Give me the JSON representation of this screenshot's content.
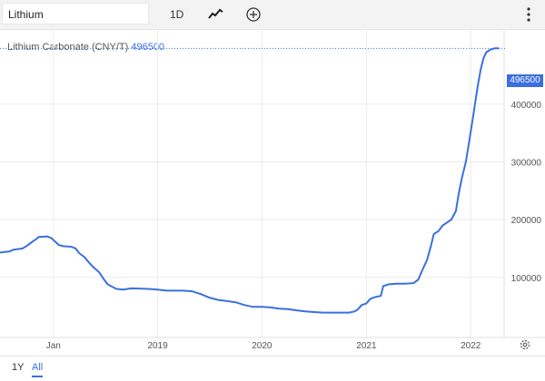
{
  "toolbar": {
    "search_value": "Lithium",
    "interval_label": "1D"
  },
  "ranges": [
    "1Y",
    "All"
  ],
  "active_range": "All",
  "colors": {
    "line": "#3b6fe0",
    "grid": "#ebebeb",
    "axis_text": "#555555"
  },
  "chart_data": {
    "type": "line",
    "title": "Lithium Carbonate (CNY/T)",
    "last_value": "496500",
    "x_ticks": [
      "Jan",
      "2019",
      "2020",
      "2021",
      "2022"
    ],
    "x_tick_dates": [
      "2018-01-01",
      "2019-01-01",
      "2020-01-01",
      "2021-01-01",
      "2022-01-01"
    ],
    "y_ticks": [
      100000,
      200000,
      300000,
      400000
    ],
    "y_tick_labels": [
      "100000",
      "200000",
      "300000",
      "400000"
    ],
    "x_range": [
      "2017-06-28",
      "2022-04-28"
    ],
    "y_range": [
      -4000,
      530000
    ],
    "grid": true,
    "series": [
      {
        "points": [
          [
            "2017-06-28",
            143000
          ],
          [
            "2017-08-01",
            145000
          ],
          [
            "2017-08-15",
            148000
          ],
          [
            "2017-09-15",
            150000
          ],
          [
            "2017-10-01",
            155000
          ],
          [
            "2017-10-20",
            162000
          ],
          [
            "2017-11-01",
            166000
          ],
          [
            "2017-11-10",
            170000
          ],
          [
            "2017-12-10",
            171000
          ],
          [
            "2017-12-25",
            168000
          ],
          [
            "2018-01-05",
            163000
          ],
          [
            "2018-01-20",
            156000
          ],
          [
            "2018-02-05",
            154000
          ],
          [
            "2018-03-05",
            153000
          ],
          [
            "2018-03-20",
            150000
          ],
          [
            "2018-04-01",
            142000
          ],
          [
            "2018-04-20",
            135000
          ],
          [
            "2018-05-05",
            126000
          ],
          [
            "2018-05-20",
            118000
          ],
          [
            "2018-06-10",
            109000
          ],
          [
            "2018-06-25",
            98000
          ],
          [
            "2018-07-10",
            88000
          ],
          [
            "2018-07-25",
            84000
          ],
          [
            "2018-08-10",
            80000
          ],
          [
            "2018-09-01",
            79000
          ],
          [
            "2018-10-01",
            81000
          ],
          [
            "2018-12-01",
            80000
          ],
          [
            "2019-01-01",
            79000
          ],
          [
            "2019-02-01",
            77000
          ],
          [
            "2019-04-01",
            77000
          ],
          [
            "2019-05-01",
            76000
          ],
          [
            "2019-06-01",
            71000
          ],
          [
            "2019-07-01",
            65000
          ],
          [
            "2019-08-01",
            61000
          ],
          [
            "2019-09-01",
            59000
          ],
          [
            "2019-10-01",
            57000
          ],
          [
            "2019-11-01",
            52000
          ],
          [
            "2019-12-01",
            49000
          ],
          [
            "2020-01-01",
            49000
          ],
          [
            "2020-02-01",
            48000
          ],
          [
            "2020-03-01",
            46000
          ],
          [
            "2020-04-01",
            45000
          ],
          [
            "2020-05-01",
            43000
          ],
          [
            "2020-06-01",
            41000
          ],
          [
            "2020-07-01",
            40000
          ],
          [
            "2020-08-01",
            39000
          ],
          [
            "2020-09-01",
            39000
          ],
          [
            "2020-10-01",
            39000
          ],
          [
            "2020-11-01",
            39000
          ],
          [
            "2020-11-20",
            41000
          ],
          [
            "2020-12-01",
            44000
          ],
          [
            "2020-12-15",
            52000
          ],
          [
            "2021-01-01",
            55000
          ],
          [
            "2021-01-15",
            63000
          ],
          [
            "2021-02-01",
            66000
          ],
          [
            "2021-02-20",
            68000
          ],
          [
            "2021-03-01",
            85000
          ],
          [
            "2021-03-20",
            88000
          ],
          [
            "2021-04-15",
            89000
          ],
          [
            "2021-05-15",
            89000
          ],
          [
            "2021-06-15",
            90000
          ],
          [
            "2021-07-01",
            96000
          ],
          [
            "2021-07-15",
            112000
          ],
          [
            "2021-08-01",
            130000
          ],
          [
            "2021-08-15",
            155000
          ],
          [
            "2021-08-25",
            175000
          ],
          [
            "2021-09-10",
            180000
          ],
          [
            "2021-09-25",
            190000
          ],
          [
            "2021-10-10",
            195000
          ],
          [
            "2021-10-25",
            200000
          ],
          [
            "2021-11-10",
            215000
          ],
          [
            "2021-11-20",
            245000
          ],
          [
            "2021-12-01",
            272000
          ],
          [
            "2021-12-15",
            300000
          ],
          [
            "2021-12-28",
            340000
          ],
          [
            "2022-01-10",
            380000
          ],
          [
            "2022-01-25",
            430000
          ],
          [
            "2022-02-05",
            460000
          ],
          [
            "2022-02-15",
            480000
          ],
          [
            "2022-02-25",
            490000
          ],
          [
            "2022-03-10",
            494000
          ],
          [
            "2022-03-25",
            496500
          ],
          [
            "2022-04-10",
            496500
          ]
        ]
      }
    ]
  }
}
